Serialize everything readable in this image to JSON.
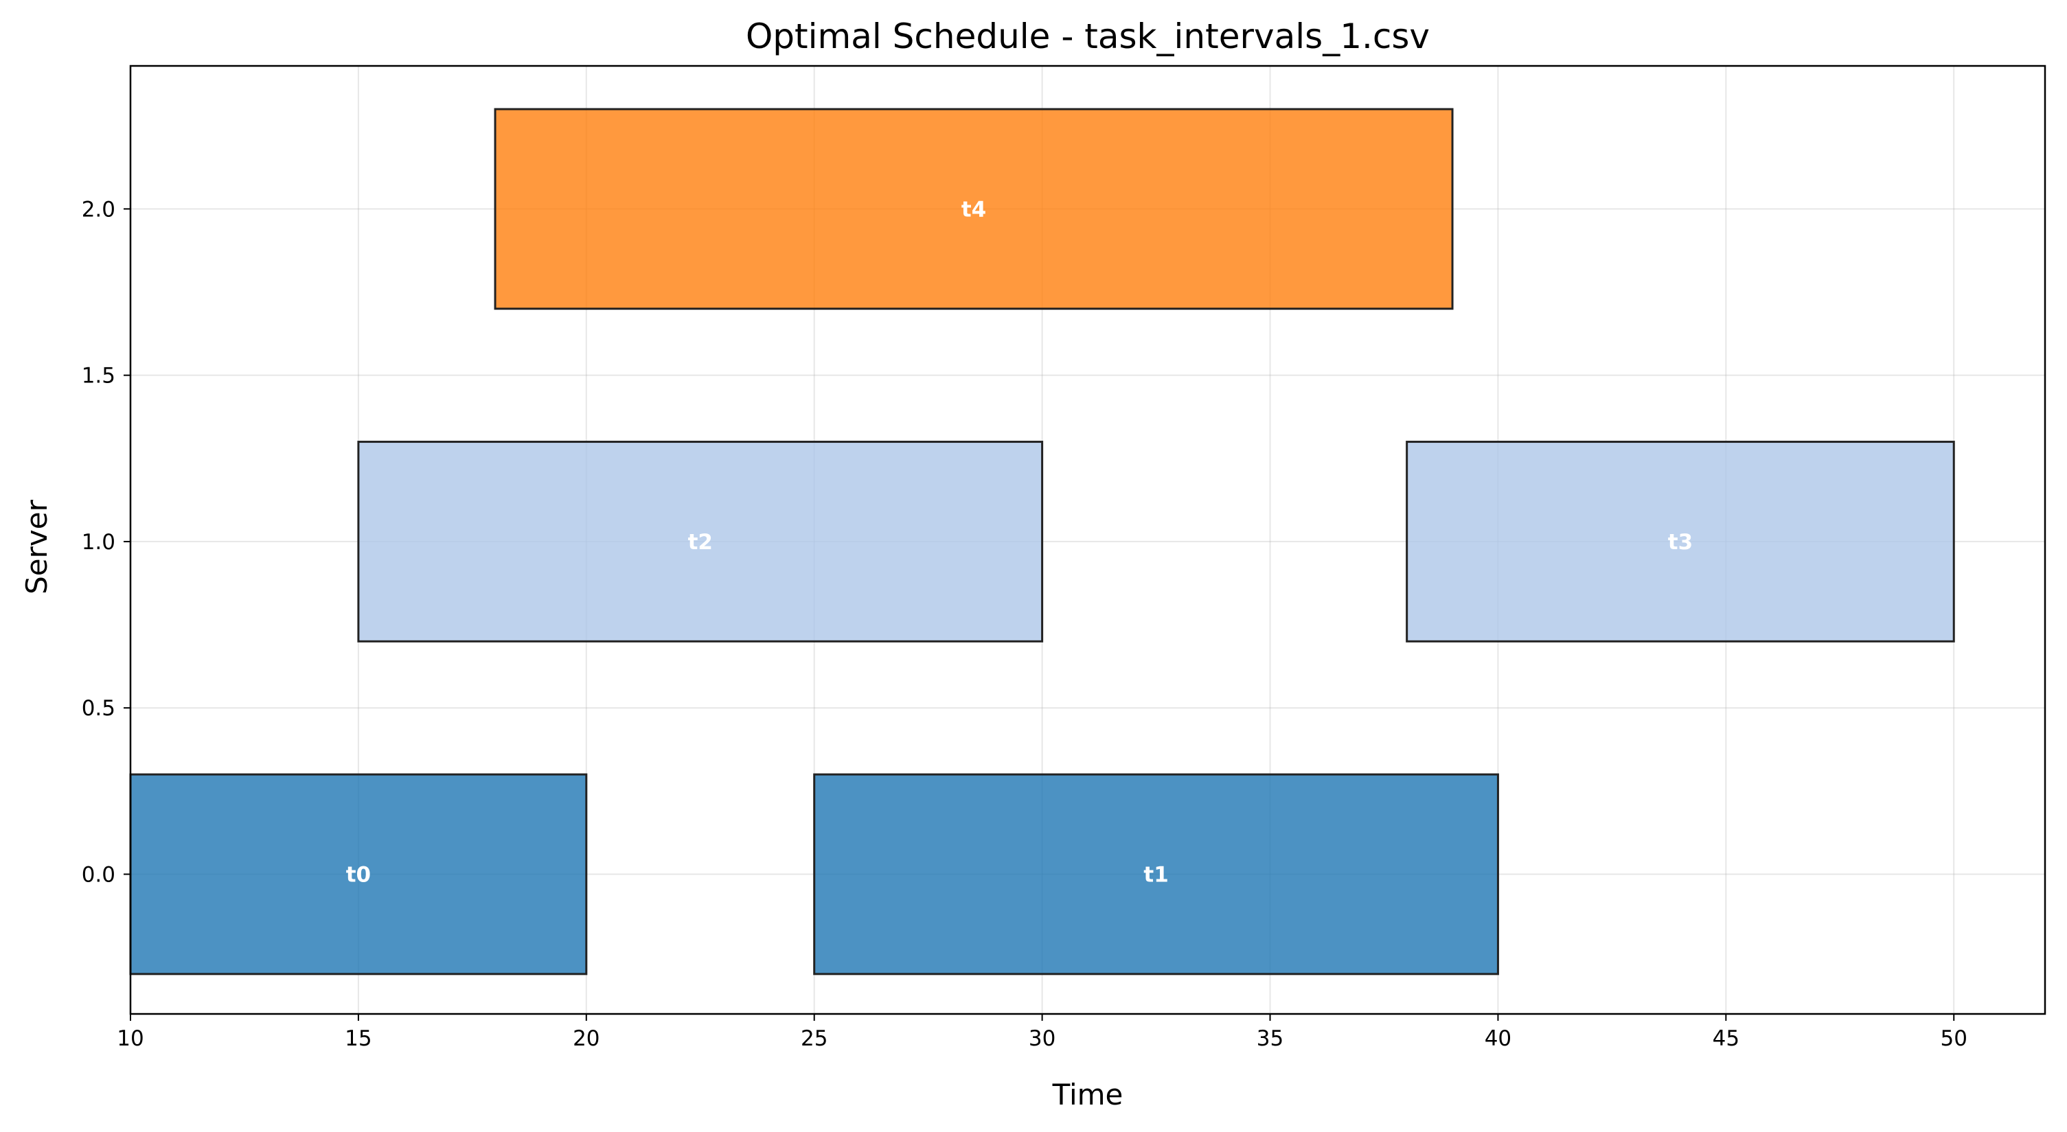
{
  "chart_data": {
    "type": "bar",
    "orientation": "horizontal-gantt",
    "title": "Optimal Schedule - task_intervals_1.csv",
    "xlabel": "Time",
    "ylabel": "Server",
    "xlim": [
      10,
      52
    ],
    "ylim": [
      -0.42,
      2.43
    ],
    "xticks": [
      10,
      15,
      20,
      25,
      30,
      35,
      40,
      45,
      50
    ],
    "xtick_labels": [
      "10",
      "15",
      "20",
      "25",
      "30",
      "35",
      "40",
      "45",
      "50"
    ],
    "yticks": [
      0.0,
      0.5,
      1.0,
      1.5,
      2.0
    ],
    "ytick_labels": [
      "0.0",
      "0.5",
      "1.0",
      "1.5",
      "2.0"
    ],
    "grid": true,
    "bar_height": 0.6,
    "tasks": [
      {
        "name": "t0",
        "server": 0,
        "start": 10,
        "end": 20,
        "color": "#1f77b4"
      },
      {
        "name": "t1",
        "server": 0,
        "start": 25,
        "end": 40,
        "color": "#1f77b4"
      },
      {
        "name": "t2",
        "server": 1,
        "start": 15,
        "end": 30,
        "color": "#aec7e8"
      },
      {
        "name": "t3",
        "server": 1,
        "start": 38,
        "end": 50,
        "color": "#aec7e8"
      },
      {
        "name": "t4",
        "server": 2,
        "start": 18,
        "end": 39,
        "color": "#ff7f0e"
      }
    ]
  }
}
